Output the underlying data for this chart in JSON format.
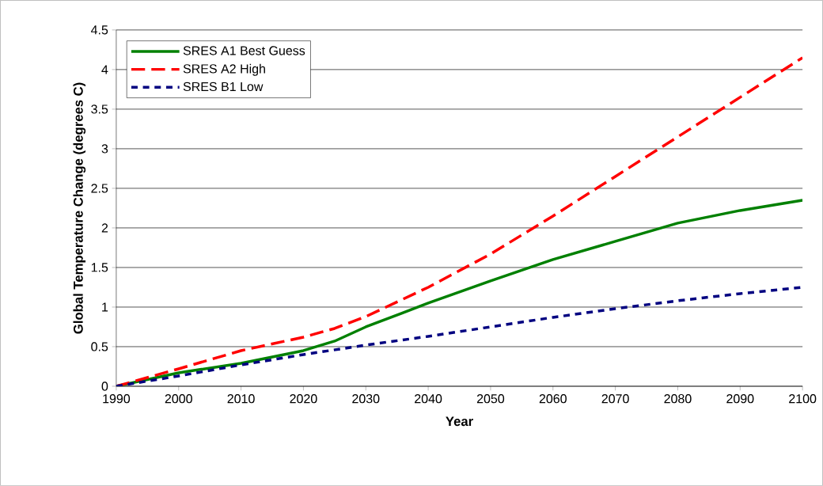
{
  "chart_data": {
    "type": "line",
    "xlabel": "Year",
    "ylabel": "Global Temperature Change (degrees C)",
    "x": [
      1990,
      2000,
      2010,
      2020,
      2025,
      2030,
      2040,
      2050,
      2060,
      2070,
      2080,
      2090,
      2100
    ],
    "series": [
      {
        "name": "SRES A1 Best Guess",
        "color": "#008000",
        "line_style": "solid",
        "values": [
          0,
          0.17,
          0.29,
          0.45,
          0.57,
          0.75,
          1.05,
          1.33,
          1.6,
          1.83,
          2.06,
          2.22,
          2.35
        ]
      },
      {
        "name": "SRES A2 High",
        "color": "#ff0000",
        "line_style": "dashed",
        "values": [
          0,
          0.22,
          0.45,
          0.62,
          0.73,
          0.88,
          1.25,
          1.67,
          2.15,
          2.65,
          3.15,
          3.65,
          4.15
        ]
      },
      {
        "name": "SRES B1 Low",
        "color": "#000080",
        "line_style": "dotted",
        "values": [
          0,
          0.13,
          0.27,
          0.4,
          0.46,
          0.52,
          0.63,
          0.75,
          0.87,
          0.98,
          1.08,
          1.17,
          1.25
        ]
      }
    ],
    "xlim": [
      1990,
      2100
    ],
    "xticks": [
      1990,
      2000,
      2010,
      2020,
      2030,
      2040,
      2050,
      2060,
      2070,
      2080,
      2090,
      2100
    ],
    "ylim": [
      0,
      4.5
    ],
    "yticks": [
      0,
      0.5,
      1,
      1.5,
      2,
      2.5,
      3,
      3.5,
      4,
      4.5
    ],
    "grid": "y",
    "legend": "top left",
    "marker": "none"
  }
}
